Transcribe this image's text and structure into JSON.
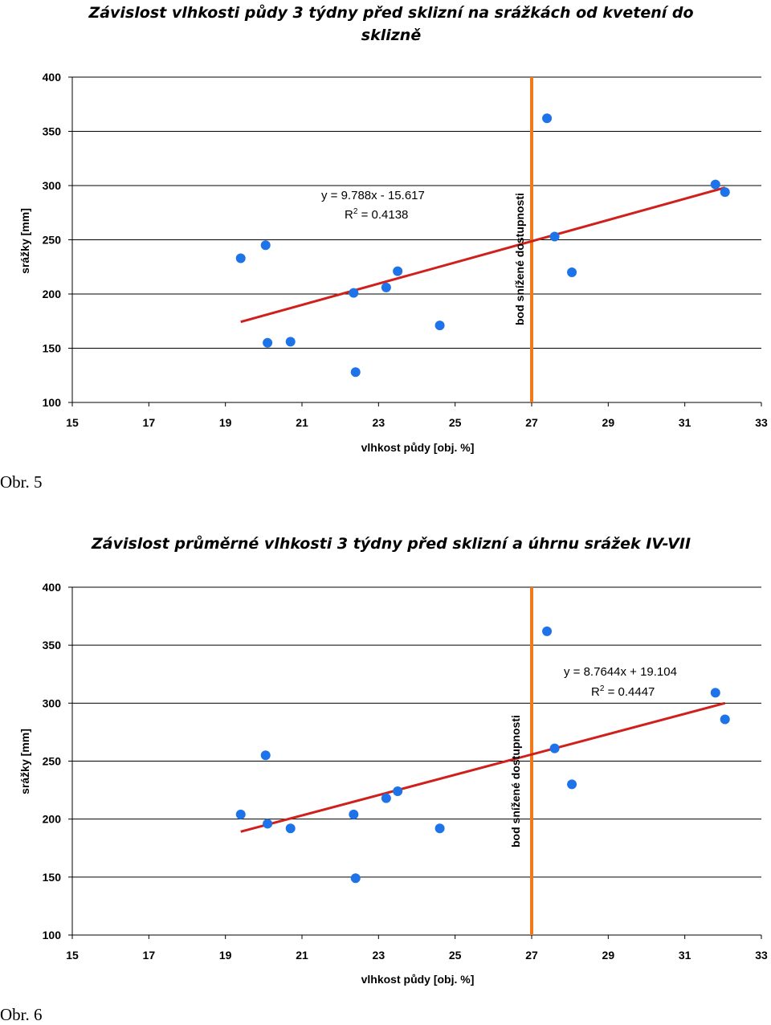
{
  "charts": [
    {
      "caption": "Obr. 5",
      "line_label": "bod snížené dostupnosti",
      "equation_text": "y = 9.788x - 15.617",
      "r2_prefix": "R",
      "r2_sup": "2",
      "r2_rest": " = 0.4138"
    },
    {
      "caption": "Obr. 6",
      "line_label": "bod snížené dostupnosti",
      "equation_text": "y = 8.7644x + 19.104",
      "r2_prefix": "R",
      "r2_sup": "2",
      "r2_rest": " = 0.4447"
    }
  ],
  "chart_data": [
    {
      "type": "scatter",
      "title_lines": [
        "Závislost vlhkosti půdy 3 týdny před sklizní na srážkách od kvetení do",
        "sklizně"
      ],
      "xlabel": "vlhkost půdy [obj. %]",
      "ylabel": "srážky [mm]",
      "xlim": [
        15,
        33
      ],
      "ylim": [
        100,
        400
      ],
      "xticks": [
        15,
        17,
        19,
        21,
        23,
        25,
        27,
        29,
        31,
        33
      ],
      "yticks": [
        100,
        150,
        200,
        250,
        300,
        350,
        400
      ],
      "grid": "horizontal",
      "points": [
        {
          "x": 19.4,
          "y": 233
        },
        {
          "x": 20.05,
          "y": 245
        },
        {
          "x": 20.1,
          "y": 155
        },
        {
          "x": 20.7,
          "y": 156
        },
        {
          "x": 22.35,
          "y": 201
        },
        {
          "x": 22.4,
          "y": 128
        },
        {
          "x": 23.2,
          "y": 206
        },
        {
          "x": 23.5,
          "y": 221
        },
        {
          "x": 24.6,
          "y": 171
        },
        {
          "x": 27.4,
          "y": 362
        },
        {
          "x": 27.6,
          "y": 253
        },
        {
          "x": 28.05,
          "y": 220
        },
        {
          "x": 31.8,
          "y": 301
        },
        {
          "x": 32.05,
          "y": 294
        }
      ],
      "trendline": {
        "slope": 9.788,
        "intercept": -15.617,
        "x_range": [
          19.4,
          32.05
        ],
        "r2": 0.4138
      },
      "vertical_line_x": 27,
      "colors": {
        "points": "#1e73e8",
        "trendline": "#d0201c",
        "vertical_line": "#f07a1a",
        "grid": "#000000"
      }
    },
    {
      "type": "scatter",
      "title_lines": [
        "Závislost průměrné vlhkosti 3 týdny před sklizní a úhrnu srážek IV-VII"
      ],
      "xlabel": "vlhkost půdy [obj. %]",
      "ylabel": "srážky [mm]",
      "xlim": [
        15,
        33
      ],
      "ylim": [
        100,
        400
      ],
      "xticks": [
        15,
        17,
        19,
        21,
        23,
        25,
        27,
        29,
        31,
        33
      ],
      "yticks": [
        100,
        150,
        200,
        250,
        300,
        350,
        400
      ],
      "grid": "horizontal",
      "points": [
        {
          "x": 19.4,
          "y": 204
        },
        {
          "x": 20.05,
          "y": 255
        },
        {
          "x": 20.1,
          "y": 196
        },
        {
          "x": 20.7,
          "y": 192
        },
        {
          "x": 22.35,
          "y": 204
        },
        {
          "x": 22.4,
          "y": 149
        },
        {
          "x": 23.2,
          "y": 218
        },
        {
          "x": 23.5,
          "y": 224
        },
        {
          "x": 24.6,
          "y": 192
        },
        {
          "x": 27.4,
          "y": 362
        },
        {
          "x": 27.6,
          "y": 261
        },
        {
          "x": 28.05,
          "y": 230
        },
        {
          "x": 31.8,
          "y": 309
        },
        {
          "x": 32.05,
          "y": 286
        }
      ],
      "trendline": {
        "slope": 8.7644,
        "intercept": 19.104,
        "x_range": [
          19.4,
          32.05
        ],
        "r2": 0.4447
      },
      "vertical_line_x": 27,
      "colors": {
        "points": "#1e73e8",
        "trendline": "#d0201c",
        "vertical_line": "#f07a1a",
        "grid": "#000000"
      }
    }
  ]
}
